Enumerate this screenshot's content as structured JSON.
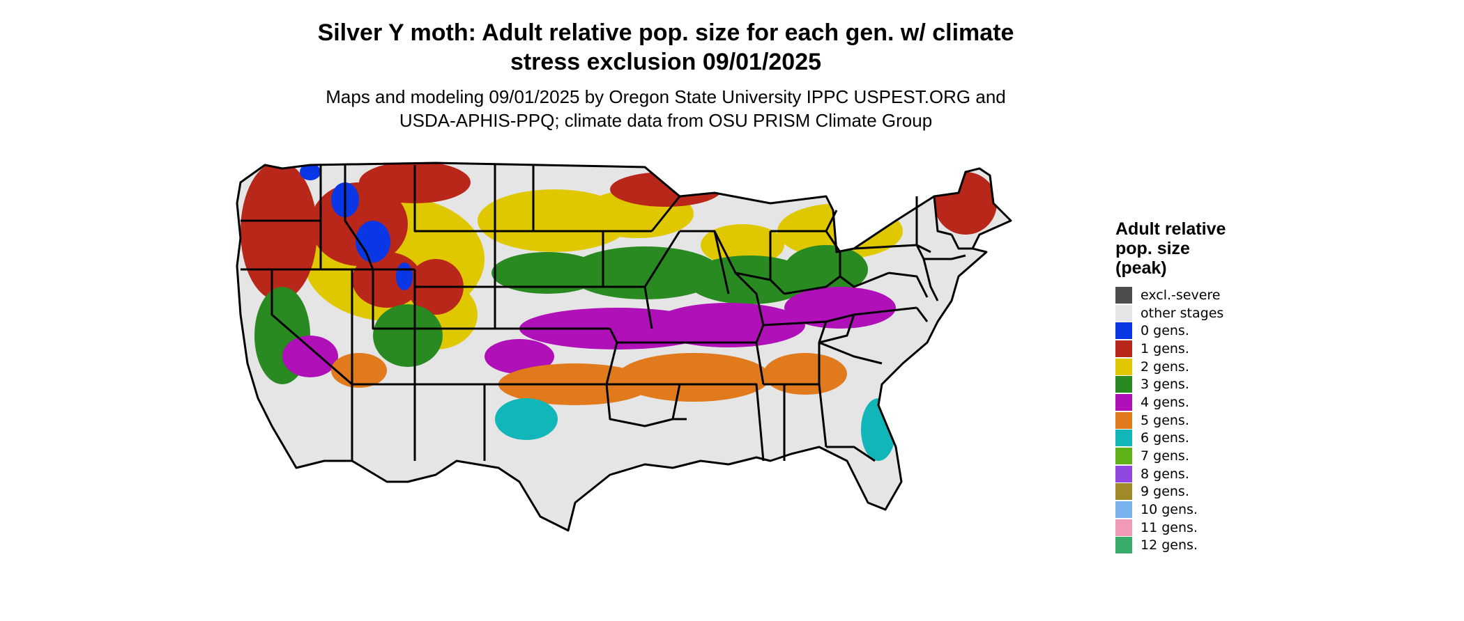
{
  "title_line1": "Silver Y moth: Adult relative pop. size for each gen. w/ climate",
  "title_line2": "stress exclusion 09/01/2025",
  "subtitle_line1": "Maps and modeling 09/01/2025 by Oregon State University IPPC USPEST.ORG and",
  "subtitle_line2": "USDA-APHIS-PPQ; climate data from OSU PRISM Climate Group",
  "legend": {
    "title_line1": "Adult relative",
    "title_line2": "pop. size",
    "title_line3": "(peak)",
    "items": [
      {
        "label": "excl.-severe",
        "color": "#4d4d4d"
      },
      {
        "label": "other stages",
        "color": "#e5e5e5"
      },
      {
        "label": "0 gens.",
        "color": "#0a37e6"
      },
      {
        "label": "1 gens.",
        "color": "#b8271a"
      },
      {
        "label": "2 gens.",
        "color": "#e0c800"
      },
      {
        "label": "3 gens.",
        "color": "#2a8a22"
      },
      {
        "label": "4 gens.",
        "color": "#b010b8"
      },
      {
        "label": "5 gens.",
        "color": "#e07a1c"
      },
      {
        "label": "6 gens.",
        "color": "#10b6b8"
      },
      {
        "label": "7 gens.",
        "color": "#60b018"
      },
      {
        "label": "8 gens.",
        "color": "#9048e0"
      },
      {
        "label": "9 gens.",
        "color": "#a08a28"
      },
      {
        "label": "10 gens.",
        "color": "#78b2ec"
      },
      {
        "label": "11 gens.",
        "color": "#f09ab8"
      },
      {
        "label": "12 gens.",
        "color": "#38aa6a"
      }
    ]
  }
}
